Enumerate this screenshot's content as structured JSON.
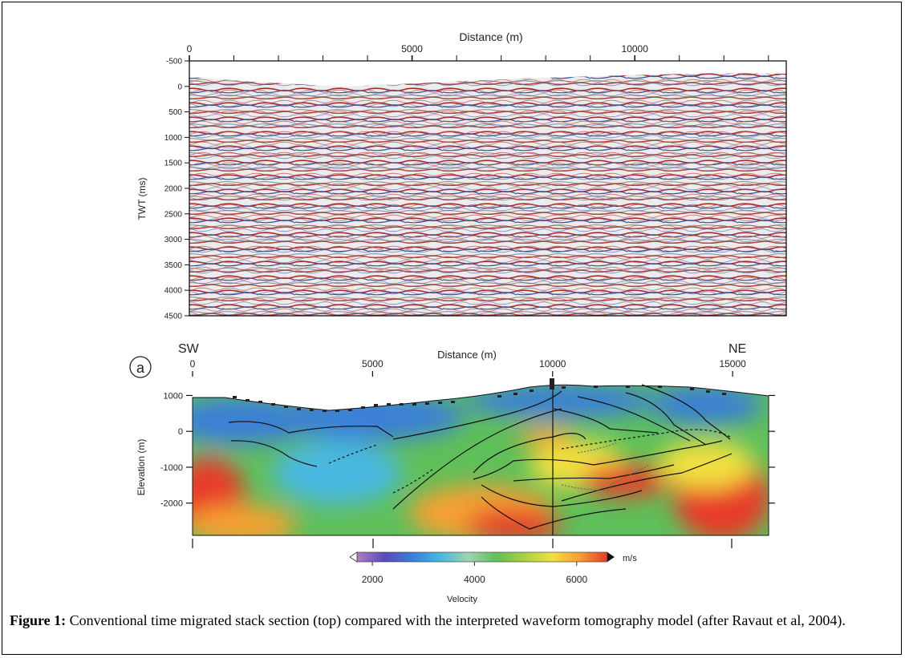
{
  "top_panel": {
    "x_axis_title": "Distance (m)",
    "x_ticks": [
      {
        "value": 0,
        "label": "0"
      },
      {
        "value": 5000,
        "label": "5000"
      },
      {
        "value": 10000,
        "label": "10000"
      }
    ],
    "x_range": [
      0,
      13400
    ],
    "y_axis_title": "TWT (ms)",
    "y_ticks": [
      -500,
      0,
      500,
      1000,
      1500,
      2000,
      2500,
      3000,
      3500,
      4000,
      4500
    ],
    "y_range": [
      -500,
      4500
    ],
    "palette": {
      "red": "#b03030",
      "blue": "#3050a0",
      "gray": "#8a8a8a",
      "light": "#eeeeee"
    }
  },
  "bottom_panel": {
    "panel_label": "a",
    "left_direction": "SW",
    "right_direction": "NE",
    "x_axis_title": "Distance (m)",
    "x_ticks": [
      {
        "value": 0,
        "label": "0"
      },
      {
        "value": 5000,
        "label": "5000"
      },
      {
        "value": 10000,
        "label": "10000"
      },
      {
        "value": 15000,
        "label": "15000"
      }
    ],
    "x_range": [
      0,
      16000
    ],
    "y_axis_title": "Elevation (m)",
    "y_ticks": [
      {
        "value": 1000,
        "label": "1000"
      },
      {
        "value": 0,
        "label": "0"
      },
      {
        "value": -1000,
        "label": "-1000"
      },
      {
        "value": -2000,
        "label": "-2000"
      }
    ],
    "y_range": [
      -2900,
      1300
    ]
  },
  "colorbar": {
    "unit": "m/s",
    "title": "Velocity",
    "ticks": [
      {
        "value": 2000,
        "label": "2000"
      },
      {
        "value": 4000,
        "label": "4000"
      },
      {
        "value": 6000,
        "label": "6000"
      }
    ],
    "range": [
      1700,
      6600
    ],
    "stops": [
      "#b27cc0",
      "#5a4ab8",
      "#3a7fd8",
      "#4ab8e0",
      "#9fd3b0",
      "#5fbf5a",
      "#a8d040",
      "#f2e040",
      "#f5a030",
      "#e83a2a"
    ]
  },
  "caption": {
    "label": "Figure 1:",
    "text": " Conventional time migrated stack section (top) compared with the interpreted waveform tomography model (after Ravaut et al, 2004)."
  }
}
